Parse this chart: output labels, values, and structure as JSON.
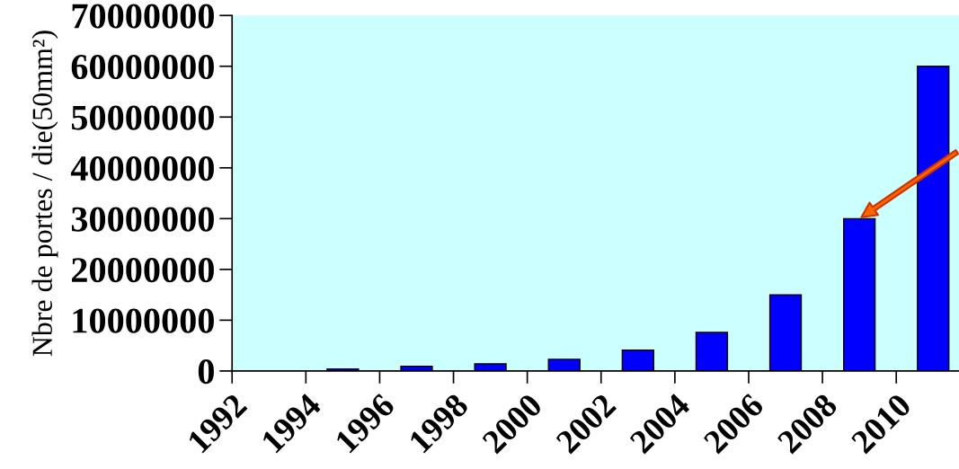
{
  "chart_data": {
    "type": "bar",
    "ylabel": "Nbre de portes / die(50mm²)",
    "x": [
      1995,
      1997,
      1999,
      2001,
      2003,
      2005,
      2007,
      2009,
      2011
    ],
    "values": [
      400000,
      900000,
      1400000,
      2300000,
      4100000,
      7600000,
      15000000,
      30000000,
      60000000
    ],
    "color": "#0000ff",
    "xlim": [
      1992,
      2011.7
    ],
    "xticks": [
      1992,
      1994,
      1996,
      1998,
      2000,
      2002,
      2004,
      2006,
      2008,
      2010
    ],
    "ylim": [
      0,
      70000000
    ],
    "yticks": [
      0,
      10000000,
      20000000,
      30000000,
      40000000,
      50000000,
      60000000,
      70000000
    ],
    "grid": false,
    "legend": false
  }
}
